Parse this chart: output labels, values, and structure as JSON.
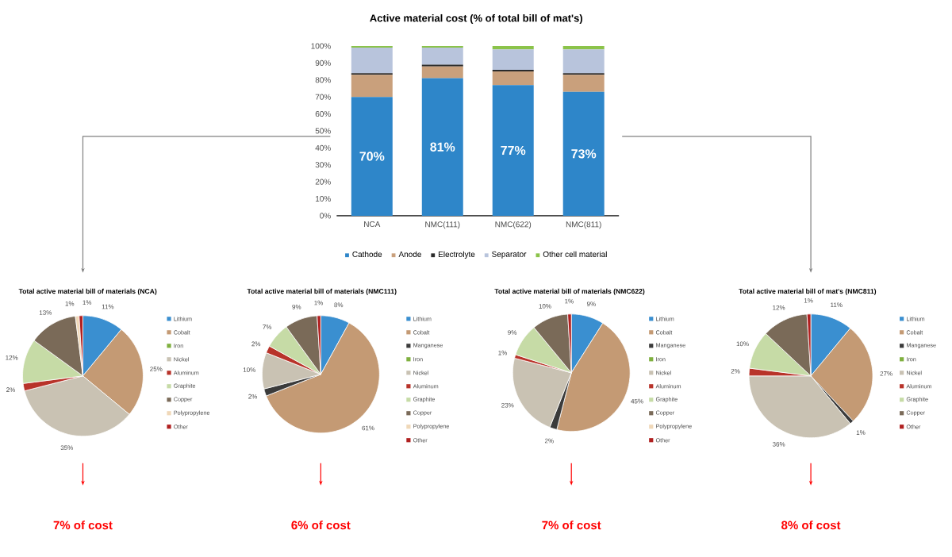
{
  "chart_data": [
    {
      "type": "bar",
      "stacked": true,
      "title": "Active material cost (% of total bill of mat's)",
      "categories": [
        "NCA",
        "NMC(111)",
        "NMC(622)",
        "NMC(811)"
      ],
      "ylim": [
        0,
        100
      ],
      "yticks": [
        {
          "value": 0,
          "label": "0%"
        },
        {
          "value": 10,
          "label": "10%"
        },
        {
          "value": 20,
          "label": "20%"
        },
        {
          "value": 30,
          "label": "30%"
        },
        {
          "value": 40,
          "label": "40%"
        },
        {
          "value": 50,
          "label": "50%"
        },
        {
          "value": 60,
          "label": "60%"
        },
        {
          "value": 70,
          "label": "70%"
        },
        {
          "value": 80,
          "label": "80%"
        },
        {
          "value": 90,
          "label": "90%"
        },
        {
          "value": 100,
          "label": "100%"
        }
      ],
      "legend": "bottom",
      "series": [
        {
          "name": "Cathode",
          "color": "#2e86c9",
          "values": [
            70,
            81,
            77,
            73
          ],
          "value_labels": [
            "70%",
            "81%",
            "77%",
            "73%"
          ]
        },
        {
          "name": "Anode",
          "color": "#c9a07c",
          "values": [
            13,
            7,
            8,
            10
          ]
        },
        {
          "name": "Electrolyte",
          "color": "#2b2b2b",
          "values": [
            1,
            1,
            1,
            1
          ]
        },
        {
          "name": "Separator",
          "color": "#b8c4dc",
          "values": [
            15,
            10,
            12,
            14
          ]
        },
        {
          "name": "Other cell material",
          "color": "#8bc34a",
          "values": [
            1,
            1,
            2,
            2
          ]
        }
      ]
    },
    {
      "type": "pie",
      "title": "Total active material bill of materials (NCA)",
      "legend": "right",
      "annotations": [
        "7% of cost"
      ],
      "categories": [
        "Lithium",
        "Cobalt",
        "Iron",
        "Nickel",
        "Aluminum",
        "Graphite",
        "Copper",
        "Polypropylene",
        "Other"
      ],
      "values": [
        11,
        25,
        0,
        35,
        2,
        12,
        13,
        1,
        1
      ],
      "value_labels": [
        "11%",
        "25%",
        null,
        "35%",
        "2%",
        "12%",
        "13%",
        "1%",
        "1%"
      ],
      "colors": [
        "#3a8fd0",
        "#c49a74",
        "#7fb03f",
        "#c9c2b3",
        "#b8332a",
        "#c6dba6",
        "#7a6a58",
        "#f0d8b8",
        "#b02020"
      ]
    },
    {
      "type": "pie",
      "title": "Total active material bill of materials (NMC111)",
      "legend": "right",
      "annotations": [
        "6% of cost"
      ],
      "categories": [
        "Lithium",
        "Cobalt",
        "Manganese",
        "Iron",
        "Nickel",
        "Aluminum",
        "Graphite",
        "Copper",
        "Polypropylene",
        "Other"
      ],
      "values": [
        8,
        61,
        2,
        0,
        10,
        2,
        7,
        9,
        0,
        1
      ],
      "value_labels": [
        "8%",
        "61%",
        "2%",
        null,
        "10%",
        "2%",
        "7%",
        "9%",
        null,
        "1%"
      ],
      "colors": [
        "#3a8fd0",
        "#c49a74",
        "#3b3b3b",
        "#7fb03f",
        "#c9c2b3",
        "#b8332a",
        "#c6dba6",
        "#7a6a58",
        "#f0d8b8",
        "#b02020"
      ]
    },
    {
      "type": "pie",
      "title": "Total active material bill of materials (NMC622)",
      "legend": "right",
      "annotations": [
        "7% of cost"
      ],
      "categories": [
        "Lithium",
        "Cobalt",
        "Manganese",
        "Iron",
        "Nickel",
        "Aluminum",
        "Graphite",
        "Copper",
        "Polypropylene",
        "Other"
      ],
      "values": [
        9,
        45,
        2,
        0,
        23,
        1,
        9,
        10,
        0,
        1
      ],
      "value_labels": [
        "9%",
        "45%",
        "2%",
        null,
        "23%",
        "1%",
        "9%",
        "10%",
        null,
        "1%"
      ],
      "colors": [
        "#3a8fd0",
        "#c49a74",
        "#3b3b3b",
        "#7fb03f",
        "#c9c2b3",
        "#b8332a",
        "#c6dba6",
        "#7a6a58",
        "#f0d8b8",
        "#b02020"
      ]
    },
    {
      "type": "pie",
      "title": "Total active material bill of mat's (NMC811)",
      "legend": "right",
      "annotations": [
        "8% of cost"
      ],
      "categories": [
        "Lithium",
        "Cobalt",
        "Manganese",
        "Iron",
        "Nickel",
        "Aluminum",
        "Graphite",
        "Copper",
        "Other"
      ],
      "values": [
        11,
        27,
        1,
        0,
        36,
        2,
        10,
        12,
        1
      ],
      "value_labels": [
        "11%",
        "27%",
        "1%",
        null,
        "36%",
        "2%",
        "10%",
        "12%",
        "1%"
      ],
      "colors": [
        "#3a8fd0",
        "#c49a74",
        "#3b3b3b",
        "#7fb03f",
        "#c9c2b3",
        "#b8332a",
        "#c6dba6",
        "#7a6a58",
        "#b02020"
      ]
    }
  ]
}
